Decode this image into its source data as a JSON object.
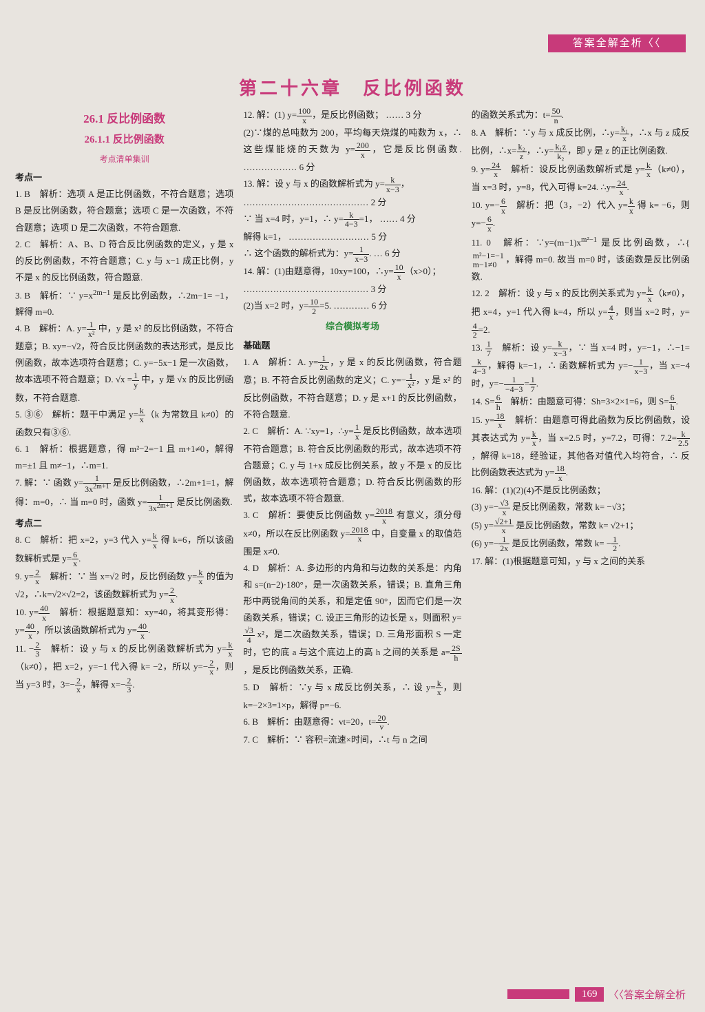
{
  "header": {
    "label": "答案全解全析〈〈"
  },
  "chapter": {
    "title": "第二十六章　反比例函数"
  },
  "footer": {
    "page": "169",
    "suffix": "〈〈答案全解全析"
  },
  "col1": {
    "sec_title": "26.1 反比例函数",
    "sec_sub": "26.1.1 反比例函数",
    "sec_tiny": "考点清单集训",
    "kd1": "考点一",
    "q1": "1. B　解析：选项 A 是正比例函数，不符合题意；选项 B 是反比例函数，符合题意；选项 C 是一次函数，不符合题意；选项 D 是二次函数，不符合题意.",
    "q2": "2. C　解析：A、B、D 符合反比例函数的定义，y 是 x 的反比例函数，不符合题意；C. y 与 x−1 成正比例，y 不是 x 的反比例函数，符合题意.",
    "q3a": "3. B　解析：∵ y=x",
    "q3b": " 是反比例函数，∴2m−1= −1，解得 m=0.",
    "q4a": "4. B　解析：A. y=",
    "q4b": " 中，y 是 x² 的反比例函数，不符合题意；B. xy=−√2，符合反比例函数的表达形式，是反比例函数，故本选项符合题意；C. y=−5x−1 是一次函数，故本选项不符合题意；D. √x =",
    "q4c": " 中，y 是 √x 的反比例函数，不符合题意.",
    "q5a": "5. ③⑥　解析：题干中满足 y=",
    "q5b": "（k 为常数且 k≠0）的函数只有③⑥.",
    "q6": "6. 1　解析：根据题意，得 m²−2=−1 且 m+1≠0，解得 m=±1 且 m≠−1，∴m=1.",
    "q7a": "7. 解：∵ 函数 y=",
    "q7b": " 是反比例函数，∴2m+1=1，解得：m=0，∴ 当 m=0 时，函数 y=",
    "q7c": " 是反比例函数.",
    "kd2": "考点二",
    "q8a": "8. C　解析：把 x=2，y=3 代入 y=",
    "q8b": " 得 k=6，所以该函数解析式是 y=",
    "q8c": ".",
    "q9a": "9. y=",
    "q9b": "　解析：∵ 当 x=√2 时，反比例函数 y=",
    "q9c": " 的值为 √2，∴k=√2×√2=2，该函数解析式为 y=",
    "q9d": ".",
    "q10a": "10. y=",
    "q10b": "　解析：根据题意知：xy=40，将其变形得：y=",
    "q10c": "，所以该函数解析式为 y=",
    "q10d": ".",
    "q11a": "11. −",
    "q11b": "　解析：设 y 与 x 的反比例函数解析式为 y=",
    "q11c": "（k≠0），把 x=2，y=−1 代入得 k= −2，所以 y=−",
    "q11d": "，则当 y=3 时，3=−",
    "q11e": "，解得 x=−",
    "q11f": "."
  },
  "col2": {
    "q12a": "12. 解：(1) y=",
    "q12b": "，是反比例函数；  …… 3 分",
    "q12c": "(2)∵煤的总吨数为 200，平均每天烧煤的吨数为 x，∴ 这些煤能烧的天数为 y=",
    "q12d": "，它是反比例函数.  ……………… 6 分",
    "q13a": "13. 解：设 y 与 x 的函数解析式为 y=",
    "q13b": "，",
    "q13c": "…………………………………… 2 分",
    "q13d": "∵ 当 x=4 时，y=1，∴ y=",
    "q13e": "=1，  …… 4 分",
    "q13f": "解得 k=1，  ……………………… 5 分",
    "q13g": "∴ 这个函数的解析式为：y=",
    "q13h": ".  … 6 分",
    "q14a": "14. 解：(1)由题意得，10xy=100，∴y=",
    "q14b": "（x>0）；",
    "q14c": "…………………………………… 3 分",
    "q14d": "(2)当 x=2 时，y=",
    "q14e": "=5.  ………… 6 分",
    "exam": "综合模拟考场",
    "jichu": "基础题",
    "b1a": "1. A　解析：A. y=",
    "b1b": "，y 是 x 的反比例函数，符合题意；B. 不符合反比例函数的定义；C. y=−",
    "b1c": "，y 是 x² 的反比例函数，不符合题意；D. y 是 x+1 的反比例函数，不符合题意.",
    "b2a": "2. C　解析：A. ∵xy=1，∴y=",
    "b2b": " 是反比例函数，故本选项不符合题意；B. 符合反比例函数的形式，故本选项不符合题意；C. y 与 1+x 成反比例关系，故 y 不是 x 的反比例函数，故本选项符合题意；D. 符合反比例函数的形式，故本选项不符合题意.",
    "b3a": "3. C　解析：要使反比例函数 y=",
    "b3b": " 有意义，须分母 x≠0，所以在反比例函数 y=",
    "b3c": " 中，自变量 x 的取值范围是 x≠0.",
    "b4a": "4. D　解析：A. 多边形的内角和与边数的关系是：内角和 s=(n−2)·180°，是一次函数关系，错误；B. 直角三角形中两锐角间的关系，和是定值 90°，因而它们是一次函数关系，错误；C. 设正三角形的边长是 x，则面积 y=",
    "b4b": " x²，是二次函数关系，错误；D. 三角形面积 S 一定时，它的底 a 与这个底边上的高 h 之间的关系是 a=",
    "b4c": "，是反比例函数关系，正确.",
    "b5a": "5. D　解析：∵y 与 x 成反比例关系，∴ 设 y=",
    "b5b": "，则 k=−2×3=1×p，解得 p=−6.",
    "b6a": "6. B　解析：由题意得：vt=20，t=",
    "b6b": ".",
    "b7": "7. C　解析：∵ 容积=流速×时间，∴t 与 n 之间"
  },
  "col3": {
    "c7a": "的函数关系式为：t=",
    "c7b": ".",
    "c8a": "8. A　解析：∵y 与 x 成反比例，∴y=",
    "c8b": "，∴x 与 z 成反比例，∴x=",
    "c8c": "，∴y=",
    "c8d": "，即 y 是 z 的正比例函数.",
    "c9a": "9. y=",
    "c9b": "　解析：设反比例函数解析式是 y=",
    "c9c": "（k≠0），当 x=3 时，y=8，代入可得 k=24. ∴y=",
    "c9d": ".",
    "c10a": "10. y=−",
    "c10b": "　解析：把（3，−2）代入 y=",
    "c10c": " 得 k= −6，则 y=−",
    "c10d": ".",
    "c11a": "11. 0　解析：∵y=(m−1)x",
    "c11b": " 是反比例函数，∴",
    "c11c": "，解得 m=0. 故当 m=0 时，该函数是反比例函数.",
    "c12a": "12. 2　解析：设 y 与 x 的反比例关系式为 y=",
    "c12b": "（k≠0），把 x=4，y=1 代入得 k=4，所以 y=",
    "c12c": "，则当 x=2 时，y=",
    "c12d": "=2.",
    "c13a": "13. ",
    "c13b": "　解析：设 y=",
    "c13c": "，∵ 当 x=4 时，y=−1，∴−1=",
    "c13d": "，解得 k=−1，∴ 函数解析式为 y=−",
    "c13e": "，当 x=−4 时，y=−",
    "c13f": "=",
    "c13g": ".",
    "c14a": "14. S=",
    "c14b": "　解析：由题意可得：Sh=3×2×1=6，则 S=",
    "c14c": ".",
    "c15a": "15. y=",
    "c15b": "　解析：由题意可得此函数为反比例函数，设其表达式为 y=",
    "c15c": "，当 x=2.5 时，y=7.2，可得：7.2=",
    "c15d": "，解得 k=18，经验证，其他各对值代入均符合，∴ 反比例函数表达式为 y=",
    "c15e": ".",
    "c16a": "16. 解：(1)(2)(4)不是反比例函数；",
    "c16b": "(3) y=−",
    "c16c": " 是反比例函数，常数 k= −√3；",
    "c16d": "(5) y=",
    "c16e": " 是反比例函数，常数 k= √2+1；",
    "c16f": "(6) y=−",
    "c16g": " 是反比例函数，常数 k= −",
    "c16h": ".",
    "c17": "17. 解：(1)根据题意可知，y 与 x 之间的关系"
  }
}
